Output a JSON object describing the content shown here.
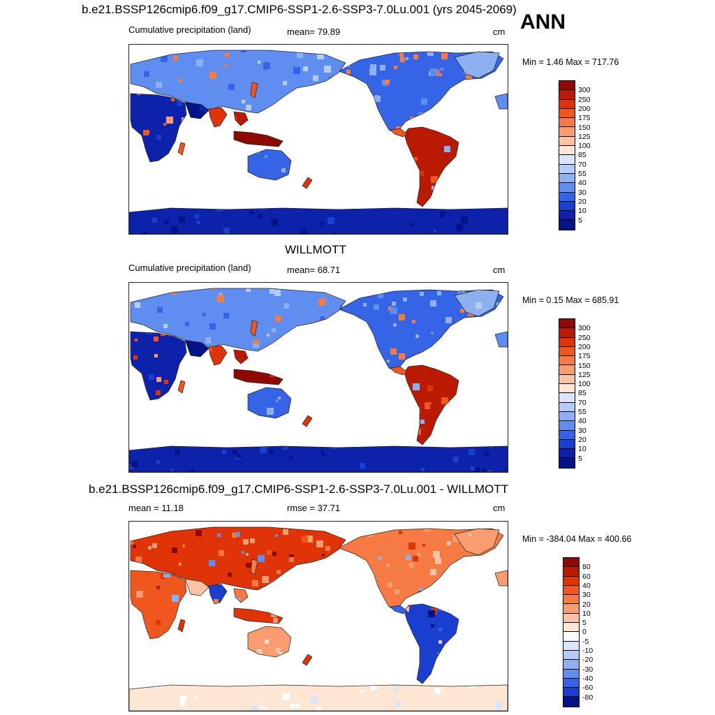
{
  "annual_label": "ANN",
  "panels": [
    {
      "title": "b.e21.BSSP126cmip6.f09_g17.CMIP6-SSP1-2.6-SSP3-7.0Lu.001 (yrs 2045-2069)",
      "left_text": "Cumulative precipitation (land)",
      "center_text": "mean=  79.89",
      "units": "cm",
      "minmax": "Min =   1.46 Max = 717.76",
      "colorbar_labels": [
        "300",
        "250",
        "200",
        "175",
        "150",
        "125",
        "100",
        "85",
        "70",
        "55",
        "40",
        "30",
        "20",
        "10",
        "5"
      ],
      "colorbar_colors": [
        "#8c0a00",
        "#bb1a02",
        "#e03308",
        "#f0571e",
        "#f67a43",
        "#f99d71",
        "#fbc3a4",
        "#fde6d4",
        "#d8e6fb",
        "#b4cdf7",
        "#8db0f1",
        "#5f8df0",
        "#3565e6",
        "#1a3fcf",
        "#0c22aa",
        "#041486"
      ],
      "map_style": "absolute"
    },
    {
      "title": "WILLMOTT",
      "left_text": "Cumulative precipitation (land)",
      "center_text": "mean=  68.71",
      "units": "cm",
      "minmax": "Min =   0.15 Max = 685.91",
      "colorbar_labels": [
        "300",
        "250",
        "200",
        "175",
        "150",
        "125",
        "100",
        "85",
        "70",
        "55",
        "40",
        "30",
        "20",
        "10",
        "5"
      ],
      "colorbar_colors": [
        "#8c0a00",
        "#bb1a02",
        "#e03308",
        "#f0571e",
        "#f67a43",
        "#f99d71",
        "#fbc3a4",
        "#fde6d4",
        "#d8e6fb",
        "#b4cdf7",
        "#8db0f1",
        "#5f8df0",
        "#3565e6",
        "#1a3fcf",
        "#0c22aa",
        "#041486"
      ],
      "map_style": "absolute"
    },
    {
      "title": "b.e21.BSSP126cmip6.f09_g17.CMIP6-SSP1-2.6-SSP3-7.0Lu.001 - WILLMOTT",
      "left_text": "mean =  11.18",
      "center_text": "rmse =  37.71",
      "units": "cm",
      "minmax": "Min = -384.04 Max = 400.66",
      "colorbar_labels": [
        "80",
        "60",
        "40",
        "30",
        "20",
        "10",
        "5",
        "0",
        "-5",
        "-10",
        "-20",
        "-30",
        "-40",
        "-60",
        "-80"
      ],
      "colorbar_colors": [
        "#8c0a00",
        "#bb1a02",
        "#e03308",
        "#f0571e",
        "#f67a43",
        "#f99d71",
        "#fbc3a4",
        "#fde6d4",
        "#ffffff",
        "#d8e6fb",
        "#b4cdf7",
        "#8db0f1",
        "#5f8df0",
        "#3565e6",
        "#1a3fcf",
        "#041486"
      ],
      "map_style": "difference"
    }
  ]
}
